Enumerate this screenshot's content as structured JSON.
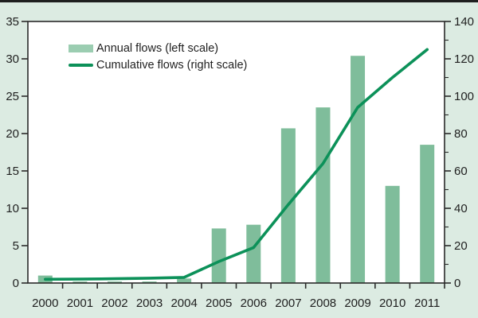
{
  "figure": {
    "background_color": "#dcebe2",
    "top_border_color": "#1f1f1f",
    "plot_background_color": "#ffffff",
    "axis_color": "#2a2a2a",
    "text_color": "#1f1f1f"
  },
  "legend": {
    "items": [
      {
        "label": "Annual flows (left scale)",
        "swatch": "bar-swatch",
        "color": "#7fbd9b"
      },
      {
        "label": "Cumulative flows (right scale)",
        "swatch": "line-swatch",
        "color": "#0c9159"
      }
    ]
  },
  "chart_data": {
    "type": "combo",
    "title": "",
    "xlabel": "",
    "ylabel_left": "",
    "ylabel_right": "",
    "grid": false,
    "legend_position": "top-left",
    "categories": [
      "2000",
      "2001",
      "2002",
      "2003",
      "2004",
      "2005",
      "2006",
      "2007",
      "2008",
      "2009",
      "2010",
      "2011"
    ],
    "series": [
      {
        "name": "Annual flows (left scale)",
        "type": "bar",
        "axis": "left",
        "color": "#7fbd9b",
        "values": [
          1.0,
          0.2,
          0.2,
          0.2,
          0.6,
          7.3,
          7.8,
          20.7,
          23.5,
          30.4,
          13.0,
          18.5
        ]
      },
      {
        "name": "Cumulative flows (right scale)",
        "type": "line",
        "axis": "right",
        "color": "#0c9159",
        "values": [
          2,
          2.1,
          2.3,
          2.6,
          3,
          11.5,
          19,
          42,
          64,
          94,
          110,
          125
        ]
      }
    ],
    "left_axis": {
      "min": 0,
      "max": 35,
      "tick_step": 5,
      "ticks": [
        0,
        5,
        10,
        15,
        20,
        25,
        30,
        35
      ]
    },
    "right_axis": {
      "min": 0,
      "max": 140,
      "tick_step": 20,
      "minor_tick_step": 10,
      "ticks": [
        0,
        20,
        40,
        60,
        80,
        100,
        120,
        140
      ]
    }
  }
}
